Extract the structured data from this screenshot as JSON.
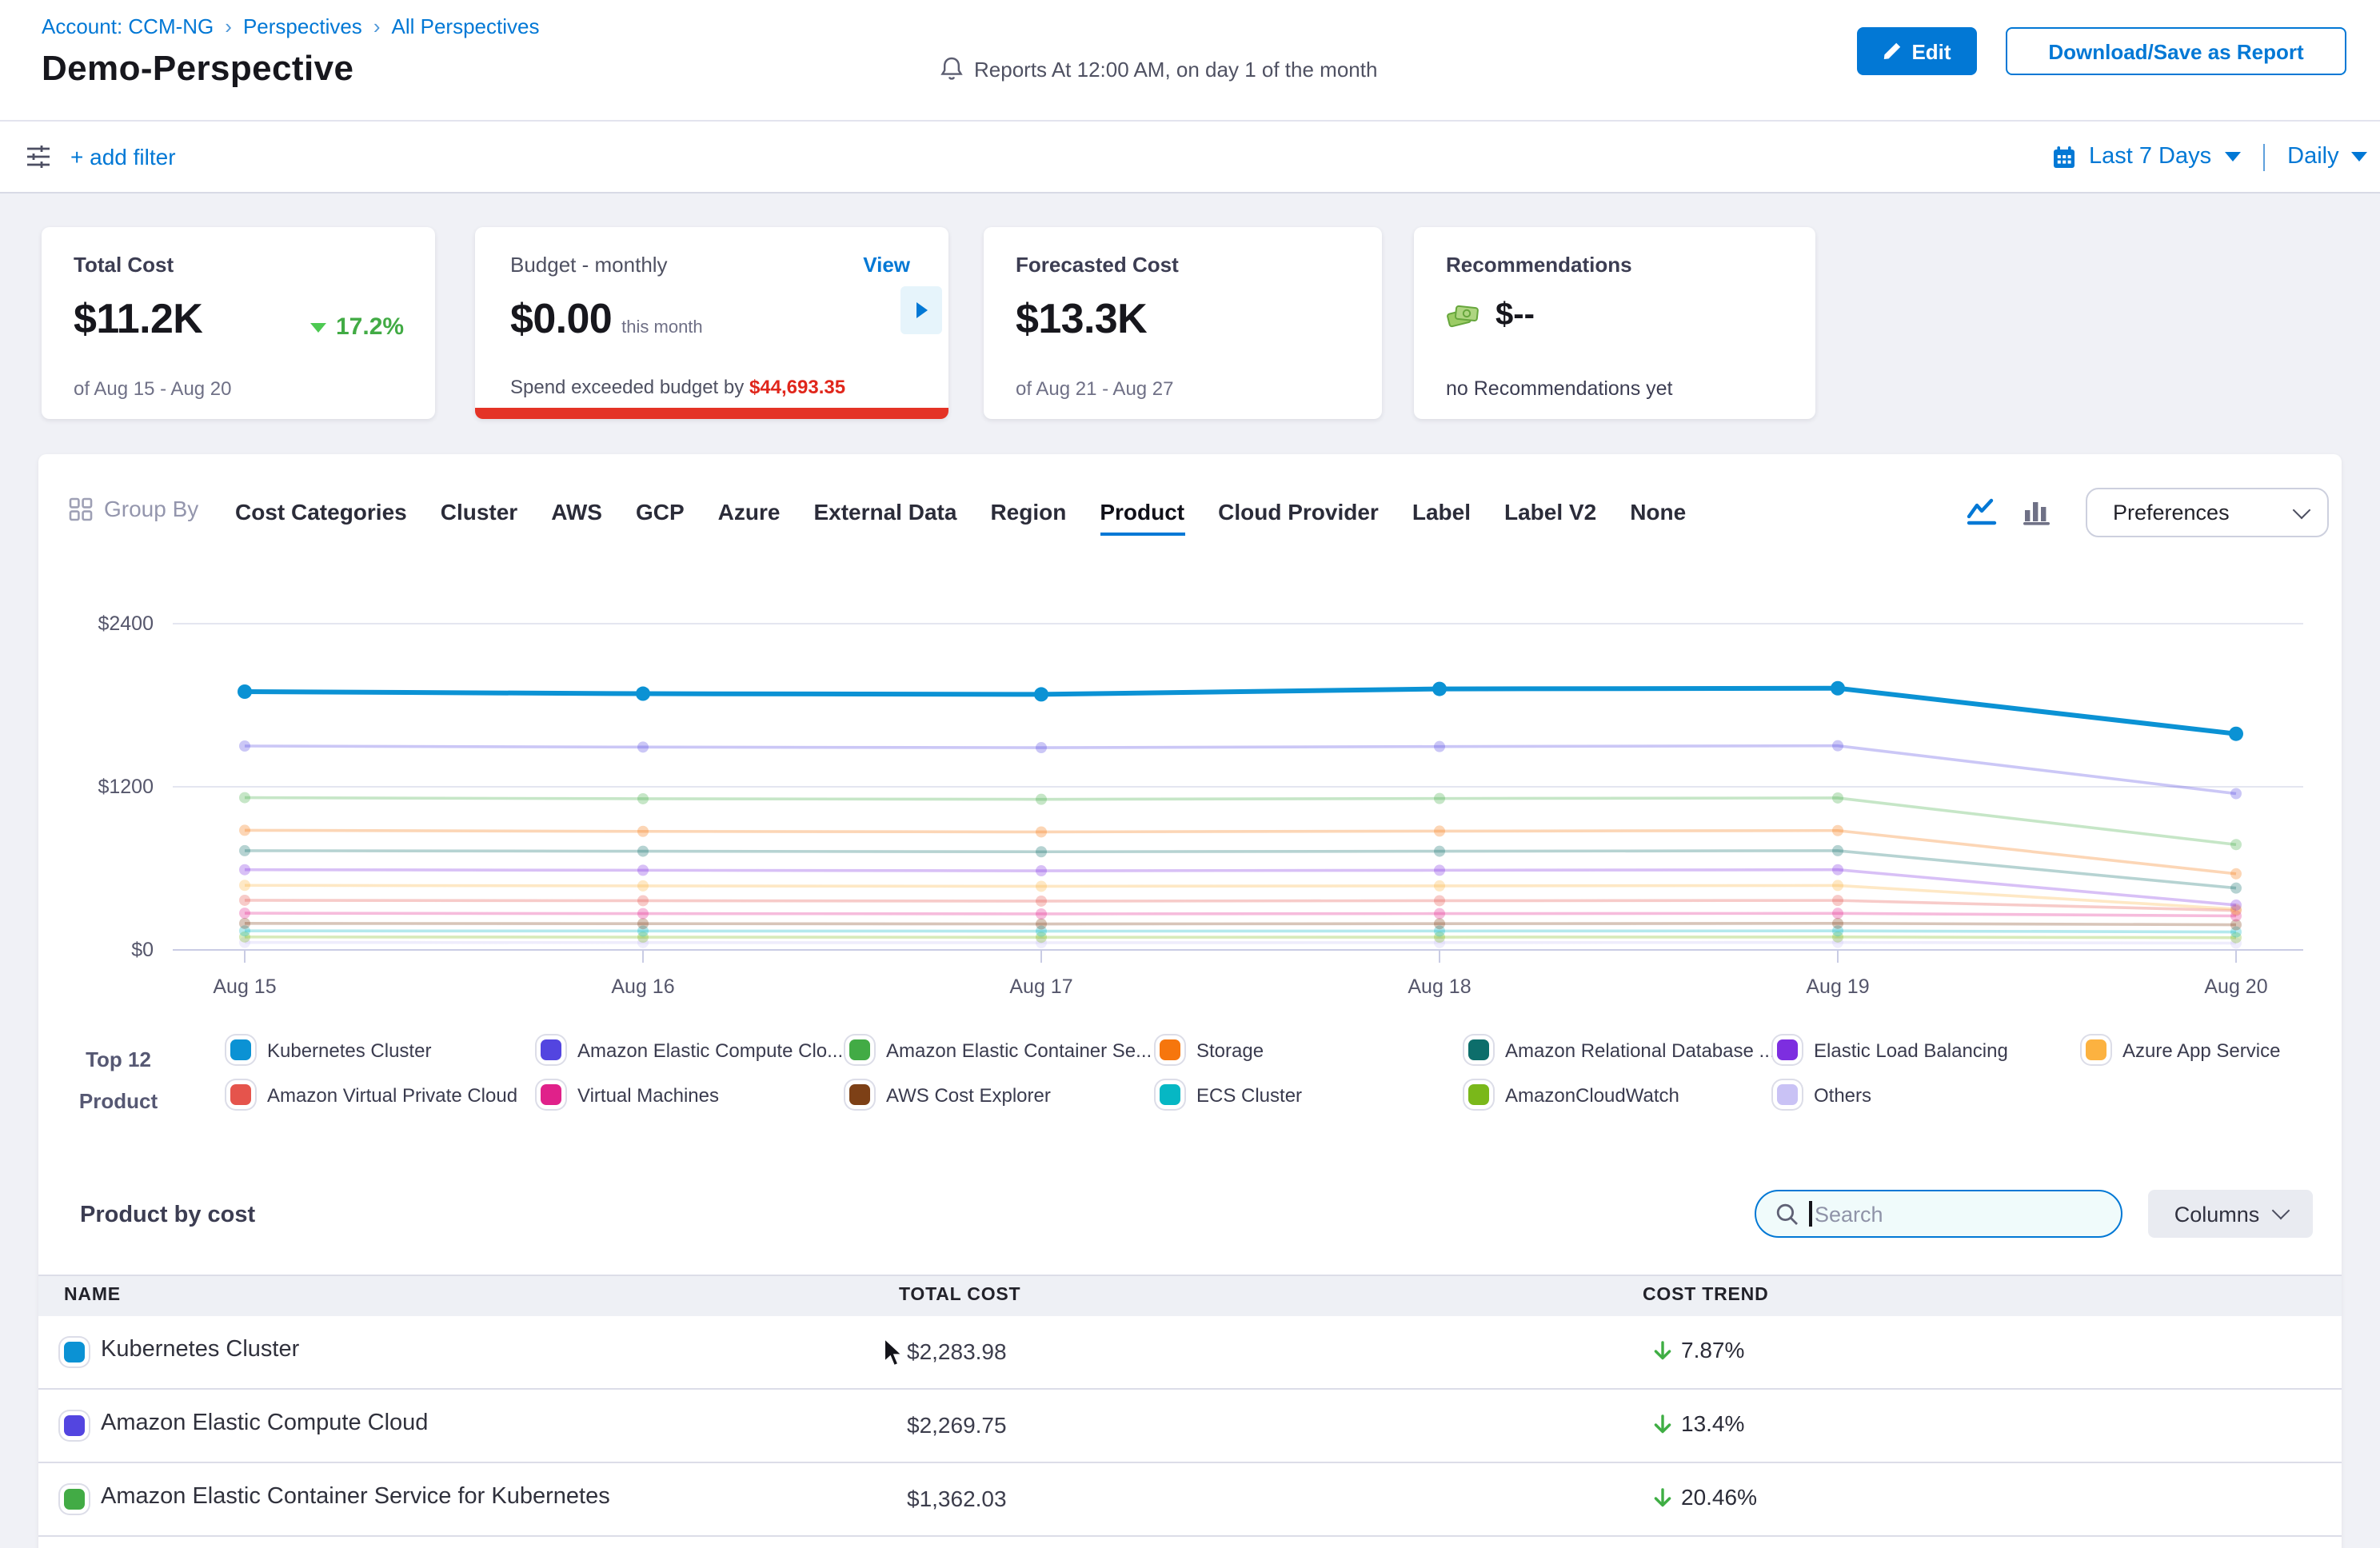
{
  "breadcrumb": {
    "items": [
      "Account: CCM-NG",
      "Perspectives",
      "All Perspectives"
    ],
    "separator": "›"
  },
  "header": {
    "title": "Demo-Perspective",
    "report_schedule": "Reports At 12:00 AM, on day 1 of the month",
    "edit_label": "Edit",
    "download_label": "Download/Save as Report"
  },
  "filter_bar": {
    "add_filter_label": "+ add filter",
    "time_range_label": "Last 7 Days",
    "granularity_label": "Daily"
  },
  "cards": {
    "total_cost": {
      "title": "Total Cost",
      "value": "$11.2K",
      "trend": "17.2%",
      "period": "of Aug 15 - Aug 20"
    },
    "budget": {
      "title": "Budget - monthly",
      "view_label": "View",
      "value": "$0.00",
      "value_suffix": "this month",
      "exceeded_text": "Spend exceeded budget by",
      "exceeded_amount": "$44,693.35"
    },
    "forecast": {
      "title": "Forecasted Cost",
      "value": "$13.3K",
      "period": "of Aug 21 - Aug 27"
    },
    "recommendations": {
      "title": "Recommendations",
      "value": "$--",
      "subtext": "no Recommendations yet"
    }
  },
  "group_by": {
    "label": "Group By",
    "tabs": [
      "Cost Categories",
      "Cluster",
      "AWS",
      "GCP",
      "Azure",
      "External Data",
      "Region",
      "Product",
      "Cloud Provider",
      "Label",
      "Label V2",
      "None"
    ],
    "active_tab": "Product",
    "preferences_label": "Preferences"
  },
  "chart_data": {
    "type": "line",
    "title": "Daily cost by Product",
    "x": [
      "Aug 15",
      "Aug 16",
      "Aug 17",
      "Aug 18",
      "Aug 19",
      "Aug 20"
    ],
    "ylim": [
      0,
      2400
    ],
    "yticks": [
      {
        "label": "$0",
        "value": 0
      },
      {
        "label": "$1200",
        "value": 1200
      },
      {
        "label": "$2400",
        "value": 2400
      }
    ],
    "grid": true,
    "legend_position": "bottom",
    "series": [
      {
        "name": "Kubernetes Cluster",
        "color": "#0b92d4",
        "emphasized": true,
        "values": [
          1900,
          1885,
          1880,
          1920,
          1925,
          1590
        ]
      },
      {
        "name": "Amazon Elastic Compute Cloud",
        "color": "#5345e0",
        "values": [
          1500,
          1492,
          1488,
          1496,
          1502,
          1150
        ]
      },
      {
        "name": "Amazon Elastic Container Service for Kubernetes",
        "color": "#42ab45",
        "values": [
          1120,
          1112,
          1108,
          1114,
          1118,
          775
        ]
      },
      {
        "name": "Storage",
        "color": "#f6760d",
        "values": [
          880,
          872,
          868,
          874,
          878,
          560
        ]
      },
      {
        "name": "Amazon Relational Database Service",
        "color": "#0d6e6b",
        "values": [
          730,
          726,
          722,
          726,
          730,
          455
        ]
      },
      {
        "name": "Elastic Load Balancing",
        "color": "#7d2ee0",
        "values": [
          590,
          586,
          582,
          586,
          590,
          330
        ]
      },
      {
        "name": "Azure App Service",
        "color": "#fcb240",
        "values": [
          475,
          471,
          468,
          471,
          474,
          300
        ]
      },
      {
        "name": "Amazon Virtual Private Cloud",
        "color": "#e5544c",
        "values": [
          365,
          362,
          359,
          362,
          364,
          290
        ]
      },
      {
        "name": "Virtual Machines",
        "color": "#e0218a",
        "values": [
          270,
          267,
          265,
          267,
          269,
          250
        ]
      },
      {
        "name": "AWS Cost Explorer",
        "color": "#7d4016",
        "values": [
          195,
          193,
          191,
          193,
          195,
          185
        ]
      },
      {
        "name": "ECS Cluster",
        "color": "#06b7c4",
        "values": [
          140,
          139,
          138,
          139,
          140,
          132
        ]
      },
      {
        "name": "AmazonCloudWatch",
        "color": "#7ab81a",
        "values": [
          95,
          94,
          93,
          94,
          95,
          90
        ]
      },
      {
        "name": "Others",
        "color": "#c9c2f5",
        "values": [
          55,
          54,
          53,
          54,
          55,
          50
        ]
      }
    ]
  },
  "legend": {
    "group_label_line1": "Top 12",
    "group_label_line2": "Product",
    "items": [
      {
        "label": "Kubernetes Cluster",
        "color": "#0b92d4"
      },
      {
        "label": "Amazon Elastic Compute Clo...",
        "color": "#5345e0"
      },
      {
        "label": "Amazon Elastic Container Se...",
        "color": "#42ab45"
      },
      {
        "label": "Storage",
        "color": "#f6760d"
      },
      {
        "label": "Amazon Relational Database ...",
        "color": "#0d6e6b"
      },
      {
        "label": "Elastic Load Balancing",
        "color": "#7d2ee0"
      },
      {
        "label": "Azure App Service",
        "color": "#fcb240"
      },
      {
        "label": "Amazon Virtual Private Cloud",
        "color": "#e5544c"
      },
      {
        "label": "Virtual Machines",
        "color": "#e0218a"
      },
      {
        "label": "AWS Cost Explorer",
        "color": "#7d4016"
      },
      {
        "label": "ECS Cluster",
        "color": "#06b7c4"
      },
      {
        "label": "AmazonCloudWatch",
        "color": "#7ab81a"
      },
      {
        "label": "Others",
        "color": "#c9c2f5"
      }
    ]
  },
  "table_section": {
    "title": "Product by cost",
    "search_placeholder": "Search",
    "columns_label": "Columns",
    "headers": [
      "NAME",
      "TOTAL COST",
      "COST TREND"
    ],
    "rows": [
      {
        "name": "Kubernetes Cluster",
        "color": "#0b92d4",
        "total_cost": "$2,283.98",
        "trend": "7.87%",
        "trend_direction": "down"
      },
      {
        "name": "Amazon Elastic Compute Cloud",
        "color": "#5345e0",
        "total_cost": "$2,269.75",
        "trend": "13.4%",
        "trend_direction": "down"
      },
      {
        "name": "Amazon Elastic Container Service for Kubernetes",
        "color": "#42ab45",
        "total_cost": "$1,362.03",
        "trend": "20.46%",
        "trend_direction": "down"
      }
    ]
  }
}
